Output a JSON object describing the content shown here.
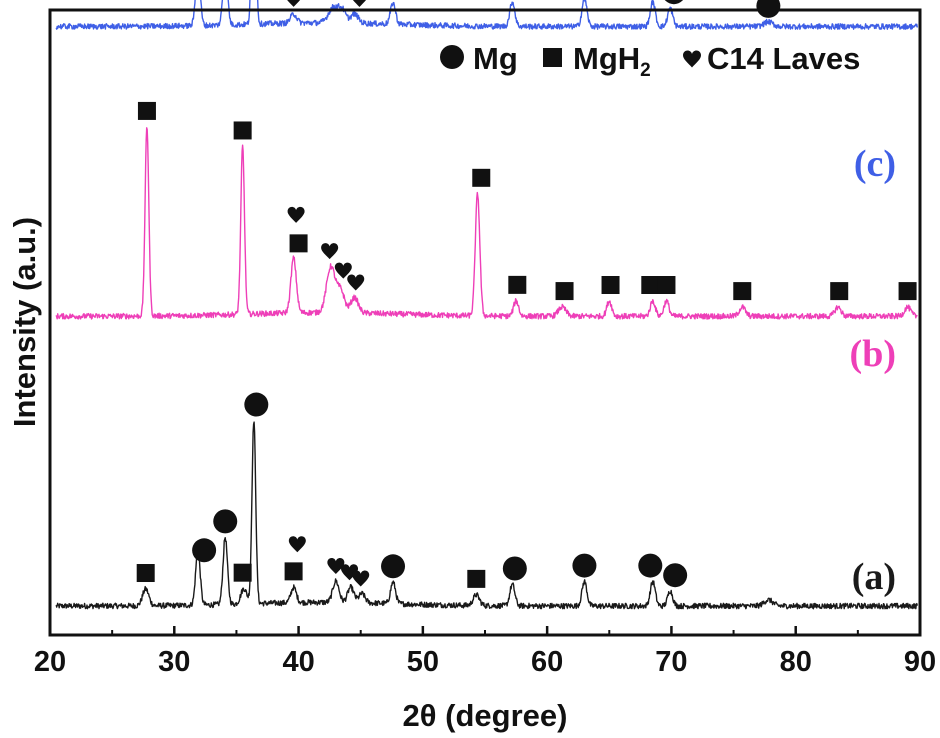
{
  "chart_data": {
    "type": "line",
    "xlabel": "2θ (degree)",
    "ylabel": "Intensity (a.u.)",
    "xlim": [
      20,
      90
    ],
    "xticks": [
      20,
      30,
      40,
      50,
      60,
      70,
      80,
      90
    ],
    "y_ticks_shown": false,
    "grid": false,
    "legend": {
      "placement": "top-right",
      "entries": [
        {
          "marker": "circle",
          "label": "Mg"
        },
        {
          "marker": "square",
          "label_main": "MgH",
          "label_sub": "2"
        },
        {
          "marker": "heart",
          "label": "C14 Laves"
        }
      ]
    },
    "series": [
      {
        "name": "(a)",
        "color": "#1a1a1a",
        "label_color": "#1a1a1a",
        "base": 0.0,
        "peaks": [
          [
            27.7,
            0.055,
            0.25
          ],
          [
            31.9,
            0.18,
            0.18
          ],
          [
            34.1,
            0.22,
            0.18
          ],
          [
            35.6,
            0.05,
            0.25
          ],
          [
            36.4,
            0.6,
            0.15
          ],
          [
            39.6,
            0.05,
            0.22
          ],
          [
            43.0,
            0.07,
            0.25
          ],
          [
            44.2,
            0.05,
            0.25
          ],
          [
            45.1,
            0.03,
            0.25
          ],
          [
            47.6,
            0.07,
            0.2
          ],
          [
            54.3,
            0.035,
            0.25
          ],
          [
            57.2,
            0.07,
            0.2
          ],
          [
            63.0,
            0.08,
            0.2
          ],
          [
            68.5,
            0.08,
            0.2
          ],
          [
            69.9,
            0.05,
            0.2
          ],
          [
            77.8,
            0.02,
            0.35
          ]
        ],
        "markers": [
          {
            "x": 27.7,
            "sym": "square"
          },
          {
            "x": 32.4,
            "sym": "circle"
          },
          {
            "x": 34.1,
            "sym": "circle"
          },
          {
            "x": 35.5,
            "sym": "square"
          },
          {
            "x": 36.6,
            "sym": "circle"
          },
          {
            "x": 39.6,
            "sym": "square"
          },
          {
            "x": 39.9,
            "sym": "heart"
          },
          {
            "x": 43.0,
            "sym": "heart"
          },
          {
            "x": 44.1,
            "sym": "heart"
          },
          {
            "x": 45.0,
            "sym": "heart"
          },
          {
            "x": 47.6,
            "sym": "circle"
          },
          {
            "x": 54.3,
            "sym": "square"
          },
          {
            "x": 57.4,
            "sym": "circle"
          },
          {
            "x": 63.0,
            "sym": "circle"
          },
          {
            "x": 68.3,
            "sym": "circle"
          },
          {
            "x": 70.3,
            "sym": "circle"
          }
        ]
      },
      {
        "name": "(b)",
        "color": "#ee3fb8",
        "label_color": "#ee3fb8",
        "base": 0.95,
        "peaks": [
          [
            27.8,
            0.62,
            0.15
          ],
          [
            35.5,
            0.55,
            0.15
          ],
          [
            39.6,
            0.18,
            0.22
          ],
          [
            42.6,
            0.15,
            0.35
          ],
          [
            43.4,
            0.07,
            0.3
          ],
          [
            44.5,
            0.05,
            0.3
          ],
          [
            54.4,
            0.4,
            0.18
          ],
          [
            57.5,
            0.05,
            0.2
          ],
          [
            61.2,
            0.03,
            0.3
          ],
          [
            65.0,
            0.05,
            0.2
          ],
          [
            68.5,
            0.05,
            0.2
          ],
          [
            69.6,
            0.05,
            0.2
          ],
          [
            75.7,
            0.03,
            0.25
          ],
          [
            83.4,
            0.03,
            0.25
          ],
          [
            89.0,
            0.03,
            0.25
          ]
        ],
        "markers": [
          {
            "x": 27.8,
            "sym": "square"
          },
          {
            "x": 35.5,
            "sym": "square"
          },
          {
            "x": 39.8,
            "sym": "heart"
          },
          {
            "x": 40.0,
            "sym": "square"
          },
          {
            "x": 42.5,
            "sym": "heart"
          },
          {
            "x": 43.6,
            "sym": "heart"
          },
          {
            "x": 44.6,
            "sym": "heart"
          },
          {
            "x": 54.7,
            "sym": "square"
          },
          {
            "x": 57.6,
            "sym": "square"
          },
          {
            "x": 61.4,
            "sym": "square"
          },
          {
            "x": 65.1,
            "sym": "square"
          },
          {
            "x": 68.3,
            "sym": "square"
          },
          {
            "x": 69.6,
            "sym": "square"
          },
          {
            "x": 75.7,
            "sym": "square"
          },
          {
            "x": 83.5,
            "sym": "square"
          },
          {
            "x": 89.0,
            "sym": "square"
          }
        ]
      },
      {
        "name": "(c)",
        "color": "#3f5fe6",
        "label_color": "#3f5fe6",
        "base": 1.9,
        "peaks": [
          [
            31.9,
            0.19,
            0.18
          ],
          [
            34.1,
            0.2,
            0.18
          ],
          [
            36.4,
            0.66,
            0.15
          ],
          [
            39.6,
            0.03,
            0.25
          ],
          [
            42.8,
            0.05,
            0.4
          ],
          [
            43.5,
            0.04,
            0.3
          ],
          [
            44.5,
            0.03,
            0.3
          ],
          [
            47.6,
            0.07,
            0.2
          ],
          [
            57.2,
            0.08,
            0.2
          ],
          [
            63.0,
            0.09,
            0.2
          ],
          [
            68.5,
            0.08,
            0.2
          ],
          [
            69.9,
            0.06,
            0.2
          ],
          [
            77.8,
            0.015,
            0.35
          ]
        ],
        "markers": [
          {
            "x": 32.0,
            "sym": "circle"
          },
          {
            "x": 34.3,
            "sym": "circle"
          },
          {
            "x": 36.6,
            "sym": "circle"
          },
          {
            "x": 39.6,
            "sym": "heart"
          },
          {
            "x": 42.8,
            "sym": "heart"
          },
          {
            "x": 43.8,
            "sym": "heart"
          },
          {
            "x": 44.9,
            "sym": "heart"
          },
          {
            "x": 47.6,
            "sym": "circle"
          },
          {
            "x": 57.4,
            "sym": "circle"
          },
          {
            "x": 63.0,
            "sym": "circle"
          },
          {
            "x": 68.3,
            "sym": "circle"
          },
          {
            "x": 70.2,
            "sym": "circle"
          },
          {
            "x": 77.8,
            "sym": "circle"
          }
        ]
      }
    ]
  }
}
